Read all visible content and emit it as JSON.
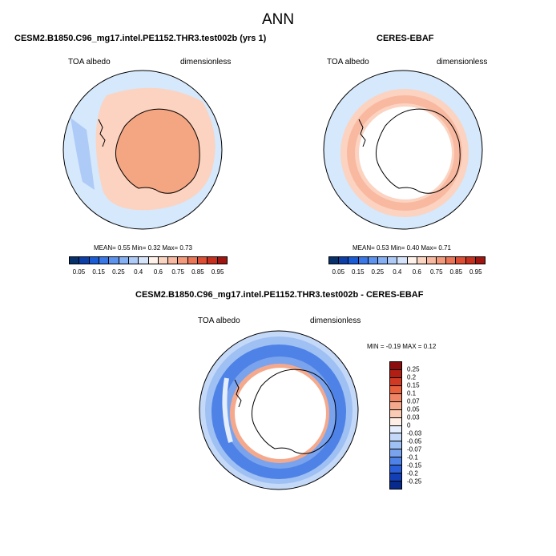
{
  "figure": {
    "title": "ANN",
    "colors": {
      "deep_blue": "#08306b",
      "ocean_pale": "#d6e8fb",
      "ice_orange": "#f4a582",
      "ring_peach": "#fbd3c0",
      "diff_blue": "#3a6fe0",
      "diff_red": "#e8603c",
      "coast": "#000000"
    }
  },
  "panel_left": {
    "title": "CESM2.B1850.C96_mg17.intel.PE1152.THR3.test002b (yrs 1)",
    "left_label": "TOA albedo",
    "right_label": "dimensionless",
    "stats": "MEAN=   0.55  Min=   0.32  Max=   0.73"
  },
  "panel_right": {
    "title": "CERES-EBAF",
    "left_label": "TOA albedo",
    "right_label": "dimensionless",
    "stats": "MEAN=   0.53  Min=   0.40  Max=   0.71"
  },
  "panel_diff": {
    "title": "CESM2.B1850.C96_mg17.intel.PE1152.THR3.test002b - CERES-EBAF",
    "left_label": "TOA albedo",
    "right_label": "dimensionless",
    "stats": "MIN =  -0.19 MAX =   0.12"
  },
  "colorbar_abs": {
    "tick_labels": [
      "0.05",
      "0.15",
      "0.25",
      "0.4",
      "0.6",
      "0.75",
      "0.85",
      "0.95"
    ],
    "colors": [
      "#08306b",
      "#0d3fa8",
      "#1a5cd6",
      "#3a78e8",
      "#5c93ef",
      "#86b0f4",
      "#aecbf8",
      "#d6e4fb",
      "#fff2ea",
      "#fcd5c2",
      "#f8b9a0",
      "#f49a7b",
      "#ec7556",
      "#de4e34",
      "#c7301f",
      "#a11510"
    ]
  },
  "colorbar_diff": {
    "tick_labels": [
      "0.25",
      "0.2",
      "0.15",
      "0.1",
      "0.07",
      "0.05",
      "0.03",
      "0",
      "-0.03",
      "-0.05",
      "-0.07",
      "-0.1",
      "-0.15",
      "-0.2",
      "-0.25"
    ],
    "colors": [
      "#8b0d0d",
      "#b01e14",
      "#d03a22",
      "#e8603c",
      "#f08565",
      "#f5a98c",
      "#f9cbb5",
      "#fdeee6",
      "#e4eefc",
      "#c4d8f8",
      "#9fc0f3",
      "#7aa3ee",
      "#4f82e6",
      "#2a5fd8",
      "#133fb6",
      "#072a8c"
    ]
  }
}
